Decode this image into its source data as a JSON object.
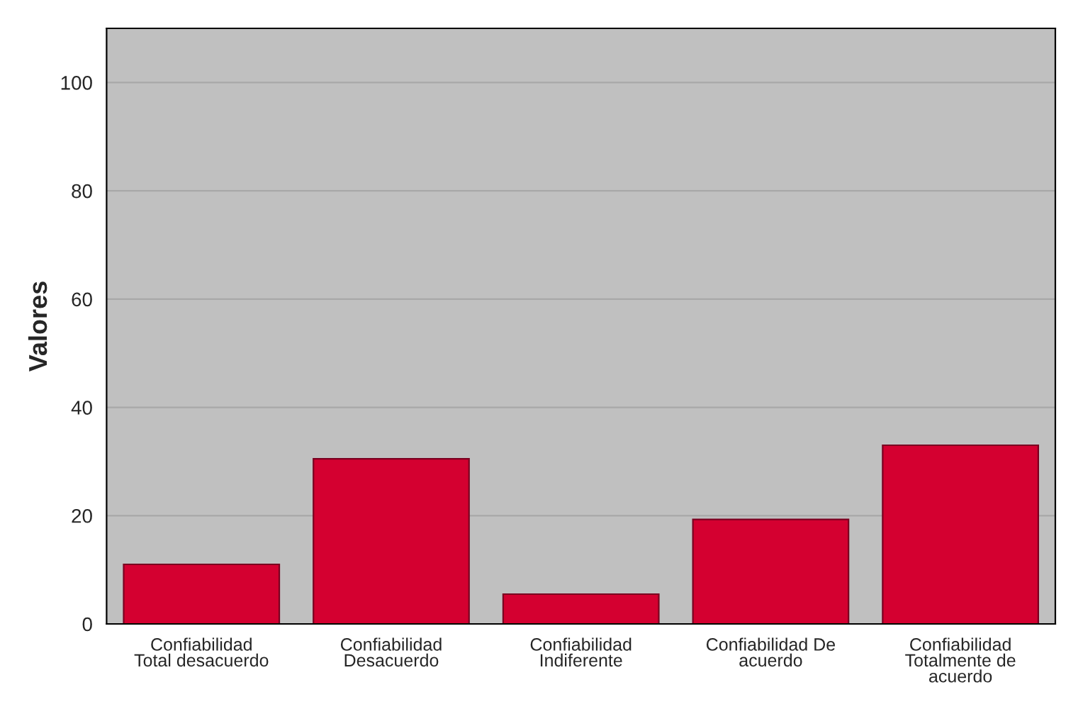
{
  "chart_data": {
    "type": "bar",
    "ylabel": "Valores",
    "categories": [
      "Confiabilidad\nTotal desacuerdo",
      "Confiabilidad\nDesacuerdo",
      "Confiabilidad\nIndiferente",
      "Confiabilidad De\nacuerdo",
      "Confiabilidad\nTotalmente de\nacuerdo"
    ],
    "values": [
      11,
      30.5,
      5.5,
      19.3,
      33
    ],
    "color": "#d40030",
    "ylim": [
      0,
      110
    ],
    "yticks": [
      0,
      20,
      40,
      60,
      80,
      100
    ],
    "grid": "y"
  }
}
